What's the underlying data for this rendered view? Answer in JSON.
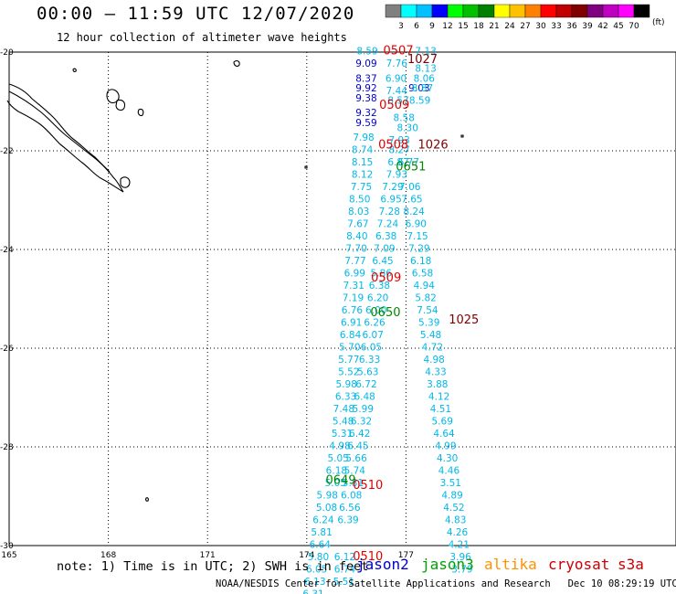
{
  "header": {
    "title": "00:00 — 11:59 UTC 12/07/2020",
    "subtitle": "12 hour collection of altimeter wave heights",
    "unit_label": "(ft)"
  },
  "color_scale": {
    "colors": [
      "#808080",
      "#00ffff",
      "#00c0ff",
      "#0000ff",
      "#00ff00",
      "#00c000",
      "#008000",
      "#ffff00",
      "#ffc000",
      "#ff8000",
      "#ff0000",
      "#c00000",
      "#800000",
      "#800080",
      "#c000c0",
      "#ff00ff",
      "#000000"
    ],
    "labels": [
      "3",
      "6",
      "9",
      "12",
      "15",
      "18",
      "21",
      "24",
      "27",
      "30",
      "33",
      "36",
      "39",
      "42",
      "45",
      "70"
    ]
  },
  "footer": {
    "note": "note: 1) Time is in UTC; 2) SWH is in feet",
    "credit": "NOAA/NESDIS Center for Satellite Applications and Research   Dec 10 08:29:19 UTC 2020"
  },
  "legend": [
    {
      "name": "jason2",
      "color": "#0000cc"
    },
    {
      "name": "jason3",
      "color": "#00a000"
    },
    {
      "name": "altika",
      "color": "#ff9000"
    },
    {
      "name": "cryosat",
      "color": "#cc0000"
    },
    {
      "name": "s3a",
      "color": "#cc0000"
    }
  ],
  "chart_data": {
    "type": "scatter",
    "title": "12 hour collection of altimeter wave heights",
    "xlabel": "",
    "ylabel": "",
    "xlim": [
      165,
      178
    ],
    "ylim": [
      -30,
      -20
    ],
    "x_ticks": [
      "165",
      "168",
      "171",
      "174",
      "177"
    ],
    "y_ticks": [
      "-20",
      "-22",
      "-24",
      "-26",
      "-28",
      "-30"
    ],
    "grid": true,
    "units": "ft",
    "series": [
      {
        "name": "jason2",
        "color": "#0000cc",
        "points": [
          {
            "lon": 175.8,
            "lat": -20.3,
            "label": "9.09"
          },
          {
            "lon": 175.8,
            "lat": -20.6,
            "label": "8.37"
          },
          {
            "lon": 175.8,
            "lat": -20.8,
            "label": "9.92"
          },
          {
            "lon": 175.8,
            "lat": -21.0,
            "label": "9.38"
          },
          {
            "lon": 175.8,
            "lat": -21.3,
            "label": "9.32"
          },
          {
            "lon": 175.8,
            "lat": -21.5,
            "label": "9.59"
          },
          {
            "lon": 177.4,
            "lat": -20.8,
            "label": "9.03"
          }
        ]
      },
      {
        "name": "altimeter-swh",
        "color": "#00b8e8",
        "points": [
          {
            "lon": 175.83,
            "lat": -20.05,
            "label": "8.59"
          },
          {
            "lon": 176.72,
            "lat": -20.3,
            "label": "7.76"
          },
          {
            "lon": 176.7,
            "lat": -20.6,
            "label": "6.90"
          },
          {
            "lon": 176.72,
            "lat": -20.85,
            "label": "7.44"
          },
          {
            "lon": 176.77,
            "lat": -21.05,
            "label": "8.57"
          },
          {
            "lon": 176.94,
            "lat": -21.4,
            "label": "8.58"
          },
          {
            "lon": 177.05,
            "lat": -21.6,
            "label": "8.30"
          },
          {
            "lon": 177.6,
            "lat": -20.05,
            "label": "7.13"
          },
          {
            "lon": 177.6,
            "lat": -20.4,
            "label": "8.13"
          },
          {
            "lon": 177.55,
            "lat": -20.6,
            "label": "8.06"
          },
          {
            "lon": 177.5,
            "lat": -20.8,
            "label": "8.87"
          },
          {
            "lon": 177.42,
            "lat": -21.05,
            "label": "8.59"
          },
          {
            "lon": 175.72,
            "lat": -21.8,
            "label": "7.98"
          },
          {
            "lon": 175.68,
            "lat": -22.05,
            "label": "8.74"
          },
          {
            "lon": 175.68,
            "lat": -22.3,
            "label": "8.15"
          },
          {
            "lon": 175.68,
            "lat": -22.55,
            "label": "8.12"
          },
          {
            "lon": 175.65,
            "lat": -22.8,
            "label": "7.75"
          },
          {
            "lon": 175.6,
            "lat": -23.05,
            "label": "8.50"
          },
          {
            "lon": 175.57,
            "lat": -23.3,
            "label": "8.03"
          },
          {
            "lon": 175.55,
            "lat": -23.55,
            "label": "7.67"
          },
          {
            "lon": 175.52,
            "lat": -23.8,
            "label": "8.40"
          },
          {
            "lon": 175.5,
            "lat": -24.05,
            "label": "7.70"
          },
          {
            "lon": 175.47,
            "lat": -24.3,
            "label": "7.77"
          },
          {
            "lon": 175.45,
            "lat": -24.55,
            "label": "6.99"
          },
          {
            "lon": 175.42,
            "lat": -24.8,
            "label": "7.31"
          },
          {
            "lon": 175.4,
            "lat": -25.05,
            "label": "7.19"
          },
          {
            "lon": 175.37,
            "lat": -25.3,
            "label": "6.76"
          },
          {
            "lon": 175.35,
            "lat": -25.55,
            "label": "6.91"
          },
          {
            "lon": 175.32,
            "lat": -25.8,
            "label": "6.84"
          },
          {
            "lon": 175.3,
            "lat": -26.05,
            "label": "5.70"
          },
          {
            "lon": 175.27,
            "lat": -26.3,
            "label": "5.77"
          },
          {
            "lon": 175.27,
            "lat": -26.55,
            "label": "5.52"
          },
          {
            "lon": 175.2,
            "lat": -26.8,
            "label": "5.98"
          },
          {
            "lon": 175.18,
            "lat": -27.05,
            "label": "6.33"
          },
          {
            "lon": 175.12,
            "lat": -27.3,
            "label": "7.48"
          },
          {
            "lon": 175.1,
            "lat": -27.55,
            "label": "5.48"
          },
          {
            "lon": 175.07,
            "lat": -27.8,
            "label": "5.31"
          },
          {
            "lon": 175.0,
            "lat": -28.05,
            "label": "4.98"
          },
          {
            "lon": 174.95,
            "lat": -28.3,
            "label": "5.05"
          },
          {
            "lon": 174.9,
            "lat": -28.55,
            "label": "6.18"
          },
          {
            "lon": 174.87,
            "lat": -28.8,
            "label": "5.05"
          },
          {
            "lon": 174.62,
            "lat": -29.05,
            "label": "5.98"
          },
          {
            "lon": 174.6,
            "lat": -29.3,
            "label": "5.08"
          },
          {
            "lon": 174.5,
            "lat": -29.55,
            "label": "6.24"
          },
          {
            "lon": 174.45,
            "lat": -29.8,
            "label": "5.81"
          },
          {
            "lon": 174.4,
            "lat": -30.05,
            "label": "6.64"
          },
          {
            "lon": 174.35,
            "lat": -30.3,
            "label": "5.80"
          },
          {
            "lon": 174.3,
            "lat": -30.55,
            "label": "6.05"
          },
          {
            "lon": 174.25,
            "lat": -30.8,
            "label": "6.13"
          },
          {
            "lon": 174.2,
            "lat": -31.05,
            "label": "6.31"
          },
          {
            "lon": 174.15,
            "lat": -31.3,
            "label": "5.16"
          },
          {
            "lon": 176.8,
            "lat": -21.85,
            "label": "7.93"
          },
          {
            "lon": 176.8,
            "lat": -22.05,
            "label": "8.27"
          },
          {
            "lon": 176.77,
            "lat": -22.3,
            "label": "6.87"
          },
          {
            "lon": 176.72,
            "lat": -22.55,
            "label": "7.93"
          },
          {
            "lon": 176.6,
            "lat": -22.8,
            "label": "7.29"
          },
          {
            "lon": 176.55,
            "lat": -23.05,
            "label": "6.95"
          },
          {
            "lon": 176.5,
            "lat": -23.3,
            "label": "7.28"
          },
          {
            "lon": 176.45,
            "lat": -23.55,
            "label": "7.24"
          },
          {
            "lon": 176.4,
            "lat": -23.8,
            "label": "6.38"
          },
          {
            "lon": 176.35,
            "lat": -24.05,
            "label": "7.09"
          },
          {
            "lon": 176.3,
            "lat": -24.3,
            "label": "6.45"
          },
          {
            "lon": 176.25,
            "lat": -24.55,
            "label": "5.86"
          },
          {
            "lon": 176.2,
            "lat": -24.8,
            "label": "6.38"
          },
          {
            "lon": 176.15,
            "lat": -25.05,
            "label": "6.20"
          },
          {
            "lon": 176.1,
            "lat": -25.3,
            "label": "6.00"
          },
          {
            "lon": 176.05,
            "lat": -25.55,
            "label": "6.26"
          },
          {
            "lon": 176.0,
            "lat": -25.8,
            "label": "6.07"
          },
          {
            "lon": 175.95,
            "lat": -26.05,
            "label": "6.05"
          },
          {
            "lon": 175.9,
            "lat": -26.3,
            "label": "6.33"
          },
          {
            "lon": 175.85,
            "lat": -26.55,
            "label": "5.63"
          },
          {
            "lon": 175.8,
            "lat": -26.8,
            "label": "6.72"
          },
          {
            "lon": 175.75,
            "lat": -27.05,
            "label": "6.48"
          },
          {
            "lon": 175.7,
            "lat": -27.3,
            "label": "5.99"
          },
          {
            "lon": 175.65,
            "lat": -27.55,
            "label": "6.32"
          },
          {
            "lon": 175.6,
            "lat": -27.8,
            "label": "6.42"
          },
          {
            "lon": 175.55,
            "lat": -28.05,
            "label": "6.45"
          },
          {
            "lon": 175.5,
            "lat": -28.3,
            "label": "5.66"
          },
          {
            "lon": 175.45,
            "lat": -28.55,
            "label": "5.74"
          },
          {
            "lon": 175.4,
            "lat": -28.8,
            "label": "5.81"
          },
          {
            "lon": 175.35,
            "lat": -29.05,
            "label": "6.08"
          },
          {
            "lon": 175.3,
            "lat": -29.3,
            "label": "6.56"
          },
          {
            "lon": 175.25,
            "lat": -29.55,
            "label": "6.39"
          },
          {
            "lon": 175.15,
            "lat": -30.3,
            "label": "6.12"
          },
          {
            "lon": 175.15,
            "lat": -30.55,
            "label": "6.74"
          },
          {
            "lon": 175.12,
            "lat": -30.8,
            "label": "5.51"
          },
          {
            "lon": 177.08,
            "lat": -22.3,
            "label": "6.77"
          },
          {
            "lon": 177.12,
            "lat": -22.8,
            "label": "7.06"
          },
          {
            "lon": 177.18,
            "lat": -23.05,
            "label": "7.65"
          },
          {
            "lon": 177.24,
            "lat": -23.3,
            "label": "8.24"
          },
          {
            "lon": 177.3,
            "lat": -23.55,
            "label": "6.90"
          },
          {
            "lon": 177.35,
            "lat": -23.8,
            "label": "7.15"
          },
          {
            "lon": 177.4,
            "lat": -24.05,
            "label": "7.29"
          },
          {
            "lon": 177.45,
            "lat": -24.3,
            "label": "6.18"
          },
          {
            "lon": 177.5,
            "lat": -24.55,
            "label": "6.58"
          },
          {
            "lon": 177.55,
            "lat": -24.8,
            "label": "4.94"
          },
          {
            "lon": 177.6,
            "lat": -25.05,
            "label": "5.82"
          },
          {
            "lon": 177.65,
            "lat": -25.3,
            "label": "7.54"
          },
          {
            "lon": 177.7,
            "lat": -25.55,
            "label": "5.39"
          },
          {
            "lon": 177.75,
            "lat": -25.8,
            "label": "5.48"
          },
          {
            "lon": 177.8,
            "lat": -26.05,
            "label": "4.72"
          },
          {
            "lon": 177.85,
            "lat": -26.3,
            "label": "4.98"
          },
          {
            "lon": 177.9,
            "lat": -26.55,
            "label": "4.33"
          },
          {
            "lon": 177.95,
            "lat": -26.8,
            "label": "3.88"
          },
          {
            "lon": 178.0,
            "lat": -27.05,
            "label": "4.12"
          },
          {
            "lon": 178.05,
            "lat": -27.3,
            "label": "4.51"
          },
          {
            "lon": 178.1,
            "lat": -27.55,
            "label": "5.69"
          },
          {
            "lon": 178.15,
            "lat": -27.8,
            "label": "4.64"
          },
          {
            "lon": 178.2,
            "lat": -28.05,
            "label": "4.99"
          },
          {
            "lon": 178.25,
            "lat": -28.3,
            "label": "4.30"
          },
          {
            "lon": 178.3,
            "lat": -28.55,
            "label": "4.46"
          },
          {
            "lon": 178.35,
            "lat": -28.8,
            "label": "3.51"
          },
          {
            "lon": 178.4,
            "lat": -29.05,
            "label": "4.89"
          },
          {
            "lon": 178.45,
            "lat": -29.3,
            "label": "4.52"
          },
          {
            "lon": 178.5,
            "lat": -29.55,
            "label": "4.83"
          },
          {
            "lon": 178.55,
            "lat": -29.8,
            "label": "4.26"
          },
          {
            "lon": 178.6,
            "lat": -30.05,
            "label": "4.21"
          },
          {
            "lon": 178.65,
            "lat": -30.3,
            "label": "3.96"
          },
          {
            "lon": 178.7,
            "lat": -30.55,
            "label": "3.79"
          }
        ]
      },
      {
        "name": "time-labels",
        "points": [
          {
            "lon": 176.77,
            "lat": -20.05,
            "label": "0507",
            "color": "#e00000"
          },
          {
            "lon": 177.5,
            "lat": -20.22,
            "label": "1027",
            "color": "#800000"
          },
          {
            "lon": 176.65,
            "lat": -21.15,
            "label": "0509",
            "color": "#e00000"
          },
          {
            "lon": 176.62,
            "lat": -21.95,
            "label": "0508",
            "color": "#e00000"
          },
          {
            "lon": 177.82,
            "lat": -21.95,
            "label": "1026",
            "color": "#800000"
          },
          {
            "lon": 177.15,
            "lat": -22.4,
            "label": "0651",
            "color": "#008800"
          },
          {
            "lon": 176.4,
            "lat": -24.65,
            "label": "0509",
            "color": "#e00000"
          },
          {
            "lon": 176.38,
            "lat": -25.35,
            "label": "0650",
            "color": "#008800"
          },
          {
            "lon": 178.75,
            "lat": -25.5,
            "label": "1025",
            "color": "#800000"
          },
          {
            "lon": 175.03,
            "lat": -28.75,
            "label": "0649",
            "color": "#008800"
          },
          {
            "lon": 175.85,
            "lat": -28.85,
            "label": "0510",
            "color": "#e00000"
          },
          {
            "lon": 175.85,
            "lat": -30.3,
            "label": "0510",
            "color": "#e00000"
          },
          {
            "lon": 174.82,
            "lat": -31.25,
            "label": "0648",
            "color": "#008800"
          }
        ]
      }
    ]
  }
}
